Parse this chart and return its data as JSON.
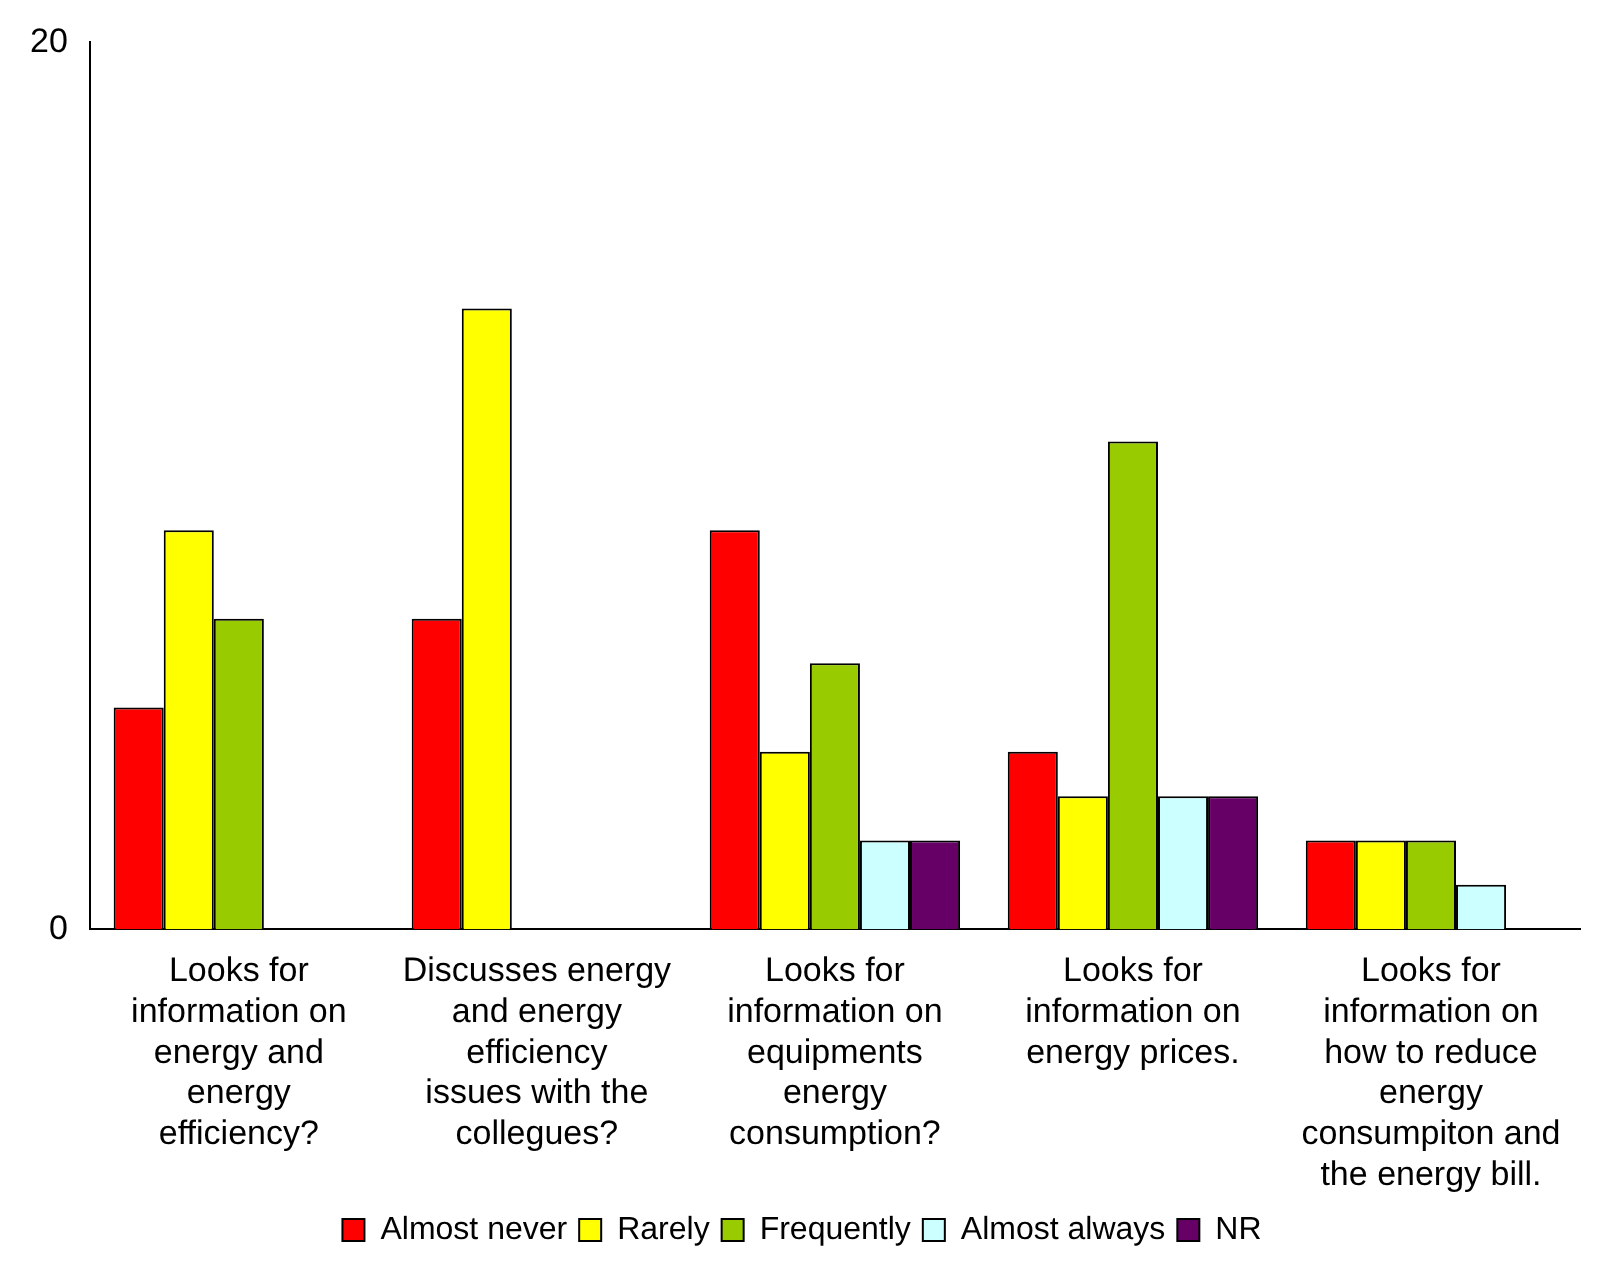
{
  "chart_data": {
    "type": "bar",
    "categories": [
      "Looks for information on energy and energy efficiency?",
      "Discusses energy and energy efficiency issues with the collegues?",
      "Looks for information on equipments energy consumption?",
      "Looks for information on energy prices.",
      "Looks for information on how to reduce energy consumpiton and the energy bill."
    ],
    "series": [
      {
        "name": "Almost never",
        "color": "#ff0000",
        "values": [
          5,
          7,
          9,
          4,
          2
        ]
      },
      {
        "name": "Rarely",
        "color": "#ffff00",
        "values": [
          9,
          14,
          4,
          3,
          2
        ]
      },
      {
        "name": "Frequently",
        "color": "#99cc00",
        "values": [
          7,
          0,
          6,
          11,
          2
        ]
      },
      {
        "name": "Almost always",
        "color": "#ccffff",
        "values": [
          0,
          0,
          2,
          3,
          1
        ]
      },
      {
        "name": "NR",
        "color": "#660066",
        "values": [
          0,
          0,
          2,
          3,
          0
        ]
      }
    ],
    "ylim": [
      0,
      20
    ],
    "yticks": [
      0,
      20
    ],
    "grid": false,
    "legend": "bottom"
  }
}
